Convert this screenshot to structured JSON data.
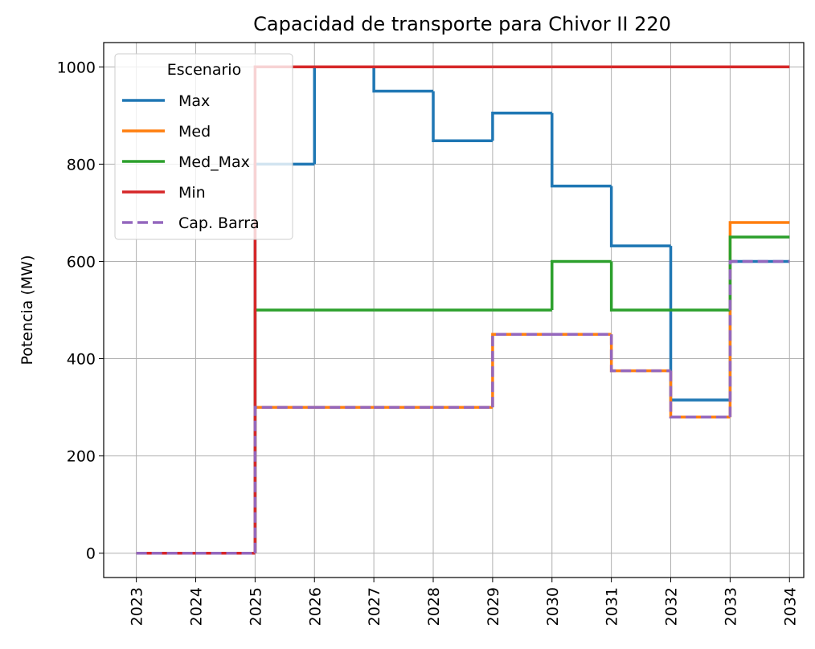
{
  "chart_data": {
    "type": "step",
    "title": "Capacidad de transporte para Chivor II 220",
    "y_label": "Potencia (MW)",
    "x": [
      2023,
      2024,
      2025,
      2026,
      2027,
      2028,
      2029,
      2030,
      2031,
      2032,
      2033,
      2034
    ],
    "series": [
      {
        "name": "Max",
        "color": "#1f77b4",
        "dashed": false,
        "values": [
          0,
          0,
          800,
          1000,
          950,
          848,
          905,
          755,
          632,
          315,
          600,
          600
        ]
      },
      {
        "name": "Med",
        "color": "#ff7f0e",
        "dashed": false,
        "values": [
          0,
          0,
          300,
          300,
          300,
          300,
          450,
          450,
          375,
          280,
          680,
          680
        ]
      },
      {
        "name": "Med_Max",
        "color": "#2ca02c",
        "dashed": false,
        "values": [
          0,
          0,
          500,
          500,
          500,
          500,
          500,
          600,
          500,
          500,
          650,
          650
        ]
      },
      {
        "name": "Min",
        "color": "#d62728",
        "dashed": false,
        "values": [
          0,
          0,
          1000,
          1000,
          1000,
          1000,
          1000,
          1000,
          1000,
          1000,
          1000,
          1000
        ]
      },
      {
        "name": "Cap. Barra",
        "color": "#9467bd",
        "dashed": true,
        "values": [
          0,
          0,
          300,
          300,
          300,
          300,
          450,
          450,
          375,
          280,
          600,
          600
        ]
      }
    ],
    "legend_title": "Escenario",
    "legend_position": "upper left",
    "xlim": [
      2022.45,
      2034.24
    ],
    "xticks": [
      2023,
      2024,
      2025,
      2026,
      2027,
      2028,
      2029,
      2030,
      2031,
      2032,
      2033,
      2034
    ],
    "ylim": [
      -50,
      1050
    ],
    "yticks": [
      0,
      200,
      400,
      600,
      800,
      1000
    ],
    "grid": true
  }
}
